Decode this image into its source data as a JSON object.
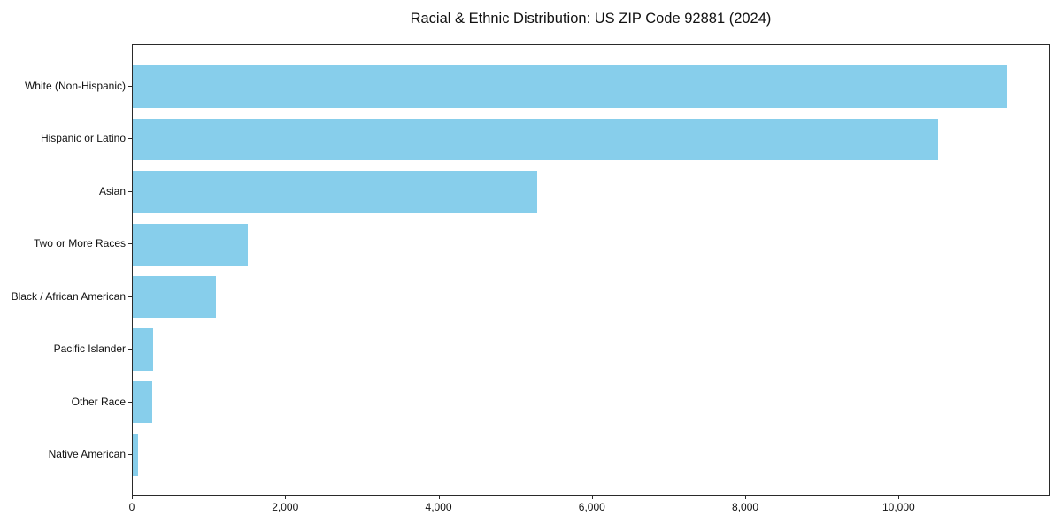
{
  "title": "Racial & Ethnic Distribution: US ZIP Code 92881 (2024)",
  "chart_data": {
    "type": "bar",
    "orientation": "horizontal",
    "title": "Racial & Ethnic Distribution: US ZIP Code 92881 (2024)",
    "categories": [
      "White (Non-Hispanic)",
      "Hispanic or Latino",
      "Asian",
      "Two or More Races",
      "Black / African American",
      "Pacific Islander",
      "Other Race",
      "Native American"
    ],
    "values": [
      11400,
      10500,
      5270,
      1500,
      1090,
      270,
      250,
      65
    ],
    "xlabel": "",
    "ylabel": "",
    "xlim": [
      0,
      11970
    ],
    "xticks": [
      0,
      2000,
      4000,
      6000,
      8000,
      10000
    ],
    "xtick_labels": [
      "0",
      "2,000",
      "4,000",
      "6,000",
      "8,000",
      "10,000"
    ],
    "bar_color": "#87CEEB",
    "text_color": "#111111",
    "grid": false,
    "legend": null,
    "first_category_on_top": true
  }
}
